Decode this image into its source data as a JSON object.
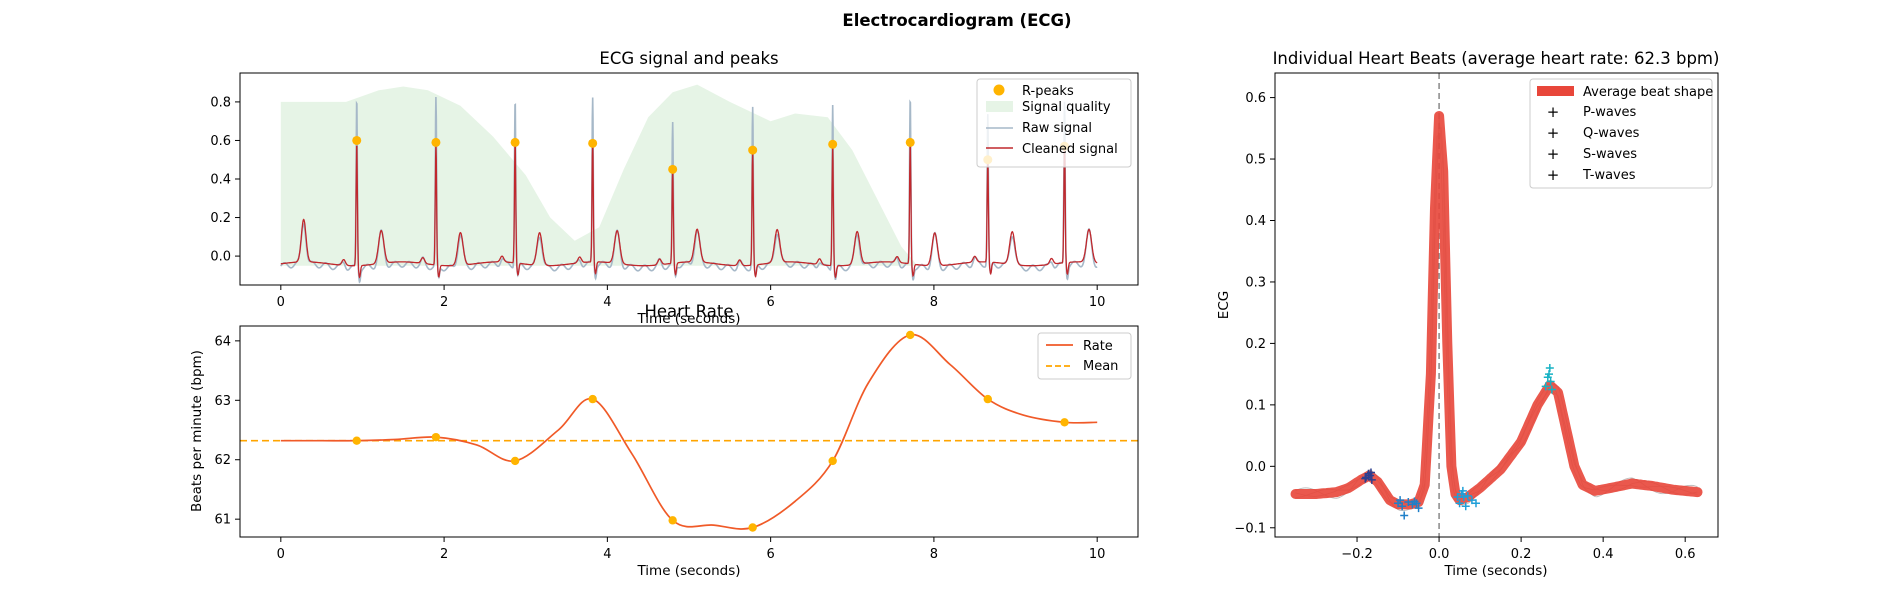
{
  "figure": {
    "title": "Electrocardiogram (ECG)"
  },
  "chart_data": [
    {
      "type": "line",
      "title": "ECG signal and peaks",
      "xlabel": "Time (seconds)",
      "ylabel": "",
      "xlim": [
        -0.5,
        10.5
      ],
      "ylim": [
        -0.15,
        0.95
      ],
      "xticks": [
        0,
        2,
        4,
        6,
        8,
        10
      ],
      "yticks": [
        0.0,
        0.2,
        0.4,
        0.6,
        0.8
      ],
      "legend": "top-right",
      "legend_labels": [
        "R-peaks",
        "Signal quality",
        "Raw signal",
        "Cleaned signal"
      ],
      "r_peaks": {
        "x": [
          0.93,
          1.9,
          2.87,
          3.82,
          4.8,
          5.78,
          6.76,
          7.71,
          8.66,
          9.6
        ],
        "y": [
          0.6,
          0.59,
          0.59,
          0.585,
          0.45,
          0.55,
          0.58,
          0.59,
          0.5,
          0.57
        ]
      },
      "signal_quality": {
        "x": [
          0.0,
          0.3,
          0.8,
          1.2,
          1.5,
          1.8,
          2.2,
          2.6,
          3.0,
          3.3,
          3.6,
          3.9,
          4.2,
          4.5,
          4.8,
          5.1,
          5.5,
          6.0,
          6.3,
          6.7,
          7.0,
          7.3,
          7.6,
          7.8,
          8.0,
          8.5,
          9.0,
          9.5,
          10.0
        ],
        "y": [
          0.8,
          0.8,
          0.8,
          0.86,
          0.88,
          0.86,
          0.78,
          0.62,
          0.42,
          0.2,
          0.08,
          0.15,
          0.45,
          0.72,
          0.85,
          0.89,
          0.8,
          0.7,
          0.74,
          0.72,
          0.55,
          0.3,
          0.05,
          -0.05,
          -0.05,
          -0.05,
          -0.05,
          -0.05,
          -0.05
        ]
      },
      "colors": {
        "r_peaks": "#FFB400",
        "signal_quality": "#e6f4e6",
        "raw": "#a6b8c8",
        "cleaned": "#c0282d"
      }
    },
    {
      "type": "line",
      "title": "Heart Rate",
      "xlabel": "Time (seconds)",
      "ylabel": "Beats per minute (bpm)",
      "xlim": [
        -0.5,
        10.5
      ],
      "ylim": [
        60.7,
        64.25
      ],
      "xticks": [
        0,
        2,
        4,
        6,
        8,
        10
      ],
      "yticks": [
        61,
        62,
        63,
        64
      ],
      "legend": "top-right",
      "series": [
        {
          "name": "Rate",
          "x": [
            0.0,
            0.5,
            0.93,
            1.4,
            1.9,
            2.4,
            2.87,
            3.4,
            3.82,
            4.3,
            4.8,
            5.3,
            5.78,
            6.3,
            6.76,
            7.2,
            7.71,
            8.2,
            8.66,
            9.1,
            9.6,
            10.0
          ],
          "y": [
            62.32,
            62.32,
            62.32,
            62.34,
            62.38,
            62.25,
            61.98,
            62.5,
            63.02,
            62.1,
            60.98,
            60.9,
            60.86,
            61.3,
            61.98,
            63.3,
            64.1,
            63.6,
            63.02,
            62.75,
            62.63,
            62.63
          ]
        },
        {
          "name": "Mean",
          "y": 62.32
        }
      ],
      "peaks": {
        "x": [
          0.93,
          1.9,
          2.87,
          3.82,
          4.8,
          5.78,
          6.76,
          7.71,
          8.66,
          9.6
        ],
        "y": [
          62.32,
          62.38,
          61.98,
          63.02,
          60.98,
          60.86,
          61.98,
          64.1,
          63.02,
          62.63
        ]
      },
      "colors": {
        "rate": "#f05a28",
        "mean": "#FFA500",
        "peaks": "#FFB400"
      }
    },
    {
      "type": "line",
      "title": "Individual Heart Beats (average heart rate: 62.3 bpm)",
      "xlabel": "Time (seconds)",
      "ylabel": "ECG",
      "xlim": [
        -0.4,
        0.68
      ],
      "ylim": [
        -0.115,
        0.64
      ],
      "xticks": [
        -0.2,
        0.0,
        0.2,
        0.4,
        0.6
      ],
      "yticks": [
        -0.1,
        0.0,
        0.1,
        0.2,
        0.3,
        0.4,
        0.5,
        0.6
      ],
      "legend": "top-right",
      "legend_labels": [
        "Average beat shape",
        "P-waves",
        "Q-waves",
        "S-waves",
        "T-waves"
      ],
      "average_beat": {
        "x": [
          -0.35,
          -0.3,
          -0.25,
          -0.22,
          -0.19,
          -0.17,
          -0.15,
          -0.12,
          -0.1,
          -0.07,
          -0.05,
          -0.035,
          -0.02,
          -0.01,
          0.0,
          0.01,
          0.02,
          0.03,
          0.04,
          0.05,
          0.07,
          0.1,
          0.15,
          0.2,
          0.24,
          0.27,
          0.29,
          0.31,
          0.33,
          0.35,
          0.38,
          0.42,
          0.47,
          0.52,
          0.57,
          0.63
        ],
        "y": [
          -0.045,
          -0.045,
          -0.042,
          -0.035,
          -0.022,
          -0.015,
          -0.025,
          -0.055,
          -0.062,
          -0.062,
          -0.058,
          -0.03,
          0.15,
          0.42,
          0.57,
          0.48,
          0.2,
          0.0,
          -0.045,
          -0.055,
          -0.05,
          -0.035,
          -0.005,
          0.04,
          0.1,
          0.132,
          0.12,
          0.06,
          0.0,
          -0.03,
          -0.04,
          -0.035,
          -0.028,
          -0.032,
          -0.038,
          -0.042
        ]
      },
      "p_waves": {
        "x": [
          -0.178,
          -0.172,
          -0.168,
          -0.164,
          -0.18,
          -0.166
        ],
        "y": [
          -0.018,
          -0.012,
          -0.015,
          -0.022,
          -0.02,
          -0.01
        ]
      },
      "q_waves": {
        "x": [
          -0.1,
          -0.09,
          -0.085,
          -0.075,
          -0.065,
          -0.055,
          -0.05,
          -0.095,
          -0.06
        ],
        "y": [
          -0.06,
          -0.065,
          -0.08,
          -0.058,
          -0.062,
          -0.06,
          -0.068,
          -0.055,
          -0.057
        ]
      },
      "s_waves": {
        "x": [
          0.045,
          0.05,
          0.055,
          0.06,
          0.065,
          0.07,
          0.08,
          0.09,
          0.058
        ],
        "y": [
          -0.05,
          -0.06,
          -0.045,
          -0.05,
          -0.065,
          -0.048,
          -0.055,
          -0.06,
          -0.04
        ]
      },
      "t_waves": {
        "x": [
          0.26,
          0.265,
          0.27,
          0.272,
          0.275,
          0.268
        ],
        "y": [
          0.13,
          0.145,
          0.16,
          0.138,
          0.125,
          0.15
        ]
      },
      "colors": {
        "average": "#e8463a",
        "p": "#2e3f8f",
        "q": "#1f7fc8",
        "s": "#1f9fd8",
        "t": "#17b2c4"
      }
    }
  ]
}
